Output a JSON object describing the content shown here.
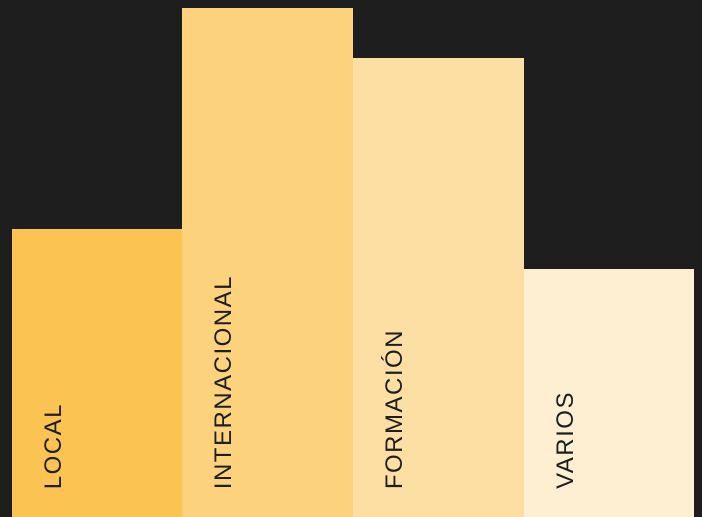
{
  "colors": {
    "background": "#1e1e1e",
    "label_text": "#1e1e1e"
  },
  "blocks": [
    {
      "id": "local",
      "label": "LOCAL",
      "color": "#fbc452"
    },
    {
      "id": "internacional",
      "label": "INTERNACIONAL",
      "color": "#fcd27c"
    },
    {
      "id": "formacion",
      "label": "FORMACIÓN",
      "color": "#fedfa3"
    },
    {
      "id": "varios",
      "label": "VARIOS",
      "color": "#feefd3"
    }
  ]
}
